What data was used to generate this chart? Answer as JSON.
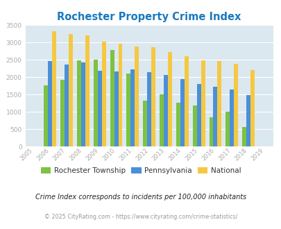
{
  "title": "Rochester Property Crime Index",
  "title_color": "#1a7abf",
  "years": [
    2005,
    2006,
    2007,
    2008,
    2009,
    2010,
    2011,
    2012,
    2013,
    2014,
    2015,
    2016,
    2017,
    2018,
    2019
  ],
  "rochester": [
    null,
    1760,
    1920,
    2490,
    2510,
    2790,
    2100,
    1320,
    1510,
    1265,
    1175,
    845,
    1005,
    570,
    null
  ],
  "pennsylvania": [
    null,
    2470,
    2365,
    2430,
    2195,
    2165,
    2225,
    2145,
    2075,
    1950,
    1800,
    1720,
    1635,
    1490,
    null
  ],
  "national": [
    null,
    3335,
    3255,
    3210,
    3035,
    2960,
    2895,
    2860,
    2735,
    2600,
    2490,
    2465,
    2385,
    2210,
    null
  ],
  "rochester_color": "#7dc242",
  "pennsylvania_color": "#4a90d9",
  "national_color": "#f5c842",
  "bar_width": 0.25,
  "ylim": [
    0,
    3500
  ],
  "yticks": [
    0,
    500,
    1000,
    1500,
    2000,
    2500,
    3000,
    3500
  ],
  "plot_bg_color": "#dce8f0",
  "grid_color": "#ffffff",
  "legend_labels": [
    "Rochester Township",
    "Pennsylvania",
    "National"
  ],
  "footnote1": "Crime Index corresponds to incidents per 100,000 inhabitants",
  "footnote2": "© 2025 CityRating.com - https://www.cityrating.com/crime-statistics/",
  "footnote1_color": "#222222",
  "footnote2_color": "#999999",
  "tick_color": "#aaaaaa",
  "xlabel_color": "#aaaaaa"
}
